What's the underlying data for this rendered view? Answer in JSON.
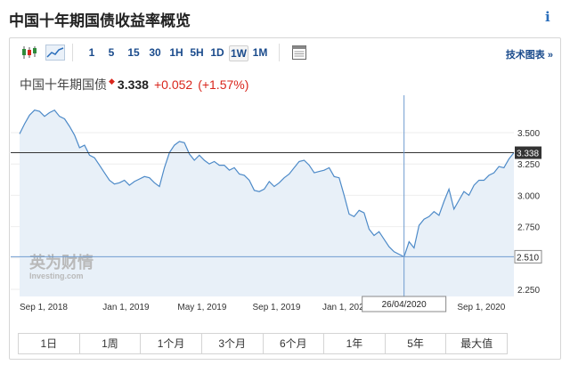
{
  "header": {
    "title": "中国十年期国债收益率概览",
    "info_icon": "info-icon"
  },
  "toolbar": {
    "icons": [
      "candlestick-icon",
      "area-chart-icon",
      "table-icon"
    ],
    "periods": [
      "1",
      "5",
      "15",
      "30",
      "1H",
      "5H",
      "1D",
      "1W",
      "1M"
    ],
    "active_period": "1W",
    "tech_chart_label": "技术图表 »"
  },
  "quote": {
    "name": "中国十年期国债",
    "price": "3.338",
    "change": "+0.052",
    "change_pct": "(+1.57%)",
    "up_color": "#d9261c"
  },
  "watermark": {
    "brand": "英为财情",
    "sub": "Investing.com"
  },
  "range_buttons": [
    "1日",
    "1周",
    "1个月",
    "3个月",
    "6个月",
    "1年",
    "5年",
    "最大值"
  ],
  "chart_data": {
    "type": "area",
    "x_ticks": [
      "Sep 1, 2018",
      "Jan 1, 2019",
      "May 1, 2019",
      "Sep 1, 2019",
      "Jan 1, 2020",
      "Sep 1, 2020"
    ],
    "y_ticks": [
      "3.500",
      "3.250",
      "3.000",
      "2.750",
      "2.500",
      "2.250"
    ],
    "ylim": [
      2.25,
      3.75
    ],
    "y_tick_values": [
      3.5,
      3.25,
      3.0,
      2.75,
      2.5,
      2.25
    ],
    "series": [
      {
        "values": [
          3.49,
          3.57,
          3.64,
          3.68,
          3.67,
          3.63,
          3.66,
          3.68,
          3.63,
          3.61,
          3.55,
          3.48,
          3.38,
          3.4,
          3.32,
          3.3,
          3.24,
          3.18,
          3.12,
          3.09,
          3.1,
          3.12,
          3.08,
          3.11,
          3.13,
          3.15,
          3.14,
          3.1,
          3.07,
          3.22,
          3.34,
          3.4,
          3.43,
          3.42,
          3.33,
          3.28,
          3.32,
          3.28,
          3.25,
          3.27,
          3.24,
          3.24,
          3.2,
          3.22,
          3.17,
          3.16,
          3.12,
          3.04,
          3.03,
          3.05,
          3.11,
          3.07,
          3.1,
          3.14,
          3.17,
          3.22,
          3.27,
          3.28,
          3.24,
          3.18,
          3.19,
          3.2,
          3.22,
          3.15,
          3.14,
          3.0,
          2.85,
          2.83,
          2.88,
          2.86,
          2.73,
          2.68,
          2.71,
          2.65,
          2.59,
          2.55,
          2.53,
          2.51,
          2.63,
          2.58,
          2.76,
          2.81,
          2.83,
          2.87,
          2.84,
          2.95,
          3.05,
          2.89,
          2.96,
          3.03,
          3.0,
          3.08,
          3.12,
          3.12,
          3.16,
          3.18,
          3.23,
          3.22,
          3.29,
          3.34
        ]
      }
    ],
    "current_value_label": "3.338",
    "crosshair": {
      "date_label": "26/04/2020",
      "value_label": "2.510",
      "value": 2.51,
      "index": 77
    },
    "x_tick_index": [
      0,
      17,
      32,
      47,
      61,
      88
    ],
    "line_color": "#4d8ac8",
    "fill_color": "#e8f0f8"
  }
}
